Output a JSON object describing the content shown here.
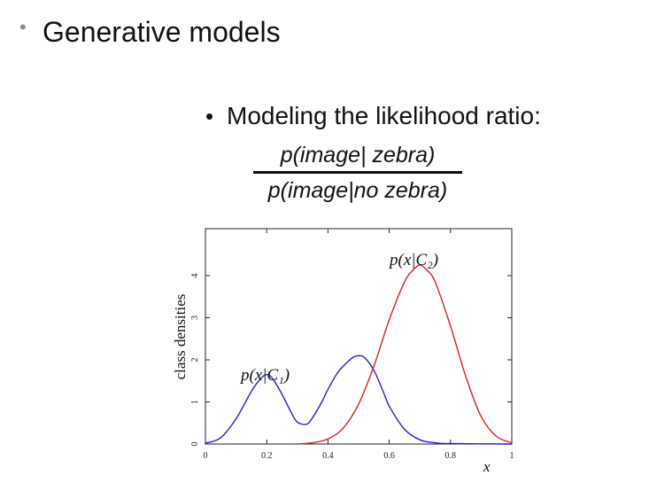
{
  "slide": {
    "bullet_title": "Generative models",
    "sub_bullet": "Modeling the likelihood ratio:",
    "ratio_numerator": "p(image| zebra)",
    "ratio_denominator": "p(image|no zebra)"
  },
  "chart_data": {
    "type": "line",
    "title": "",
    "xlabel": "x",
    "ylabel": "class densities",
    "xlim": [
      0,
      1
    ],
    "ylim": [
      0,
      5
    ],
    "x_ticks": [
      0,
      0.2,
      0.4,
      0.6,
      0.8,
      1
    ],
    "x_tick_labels": [
      "0",
      "0.2",
      "0.4",
      "0.6",
      "0.8",
      "1"
    ],
    "y_ticks": [
      0,
      1,
      2,
      3,
      4
    ],
    "y_tick_labels": [
      "0",
      "1",
      "2",
      "3",
      "4"
    ],
    "grid": false,
    "series": [
      {
        "name": "p(x|C₁)",
        "color": "#1f1fe0",
        "x": [
          0,
          0.05,
          0.1,
          0.15,
          0.18,
          0.2,
          0.22,
          0.25,
          0.28,
          0.3,
          0.33,
          0.35,
          0.38,
          0.4,
          0.43,
          0.45,
          0.48,
          0.5,
          0.52,
          0.55,
          0.58,
          0.6,
          0.65,
          0.7,
          0.75,
          0.8,
          1
        ],
        "values": [
          0.02,
          0.15,
          0.6,
          1.25,
          1.55,
          1.65,
          1.55,
          1.18,
          0.75,
          0.52,
          0.47,
          0.63,
          1.0,
          1.3,
          1.68,
          1.85,
          2.05,
          2.1,
          2.05,
          1.75,
          1.25,
          0.9,
          0.35,
          0.1,
          0.03,
          0.01,
          0
        ]
      },
      {
        "name": "p(x|C₂)",
        "color": "#e01f1f",
        "x": [
          0.3,
          0.35,
          0.4,
          0.45,
          0.5,
          0.55,
          0.6,
          0.65,
          0.68,
          0.7,
          0.72,
          0.75,
          0.8,
          0.85,
          0.9,
          0.95,
          1
        ],
        "values": [
          0,
          0.03,
          0.12,
          0.38,
          0.95,
          1.85,
          2.95,
          3.85,
          4.15,
          4.25,
          4.15,
          3.85,
          2.8,
          1.6,
          0.65,
          0.18,
          0.03
        ]
      }
    ]
  }
}
